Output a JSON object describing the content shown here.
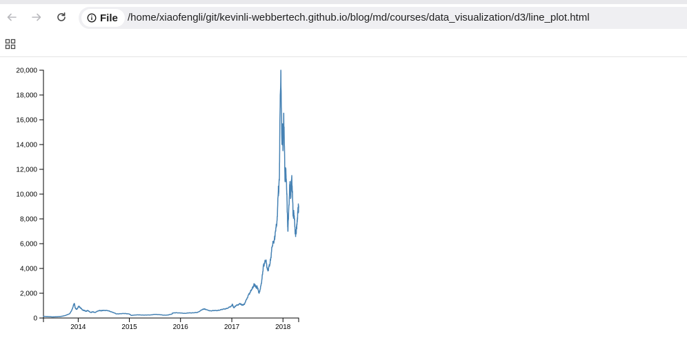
{
  "browser": {
    "back_icon": "arrow-left-icon",
    "forward_icon": "arrow-right-icon",
    "reload_icon": "reload-icon",
    "info_icon": "info-icon",
    "scheme_label": "File",
    "url": "/home/xiaofengli/git/kevinli-webbertech.github.io/blog/md/courses/data_visualization/d3/line_plot.html",
    "apps_icon": "apps-grid-icon"
  },
  "colors": {
    "line": "#4682b4",
    "axis": "#000000",
    "toolbar_strip": "#e9e9ec",
    "omnibox": "#efeff2"
  },
  "chart_data": {
    "type": "line",
    "title": "",
    "xlabel": "",
    "ylabel": "",
    "xlim": [
      "2013-04-28",
      "2018-04-23"
    ],
    "ylim": [
      0,
      20000
    ],
    "grid": false,
    "x_tick_labels": [
      "2014",
      "2015",
      "2016",
      "2017",
      "2018"
    ],
    "y_tick_labels": [
      "0",
      "2,000",
      "4,000",
      "6,000",
      "8,000",
      "10,000",
      "12,000",
      "14,000",
      "16,000",
      "18,000",
      "20,000"
    ],
    "y_ticks": [
      0,
      2000,
      4000,
      6000,
      8000,
      10000,
      12000,
      14000,
      16000,
      18000,
      20000
    ],
    "series": [
      {
        "x": [
          "2013-04-28",
          "2013-06-01",
          "2013-07-01",
          "2013-08-01",
          "2013-09-01",
          "2013-10-01",
          "2013-11-01",
          "2013-11-15",
          "2013-11-25",
          "2013-11-30",
          "2013-12-05",
          "2013-12-10",
          "2013-12-18",
          "2013-12-25",
          "2014-01-05",
          "2014-01-15",
          "2014-02-01",
          "2014-02-15",
          "2014-02-25",
          "2014-03-10",
          "2014-04-01",
          "2014-04-15",
          "2014-05-01",
          "2014-06-01",
          "2014-06-15",
          "2014-07-01",
          "2014-08-01",
          "2014-09-01",
          "2014-10-01",
          "2014-11-01",
          "2014-12-01",
          "2015-01-01",
          "2015-01-15",
          "2015-02-01",
          "2015-03-01",
          "2015-04-01",
          "2015-05-01",
          "2015-06-01",
          "2015-07-01",
          "2015-08-01",
          "2015-09-01",
          "2015-10-01",
          "2015-11-01",
          "2015-11-05",
          "2015-12-01",
          "2016-01-01",
          "2016-02-01",
          "2016-03-01",
          "2016-04-01",
          "2016-05-01",
          "2016-06-01",
          "2016-06-18",
          "2016-07-01",
          "2016-08-01",
          "2016-09-01",
          "2016-10-01",
          "2016-11-01",
          "2016-12-01",
          "2017-01-01",
          "2017-01-05",
          "2017-01-15",
          "2017-02-01",
          "2017-03-01",
          "2017-03-15",
          "2017-04-01",
          "2017-05-01",
          "2017-05-25",
          "2017-06-10",
          "2017-06-20",
          "2017-07-01",
          "2017-07-15",
          "2017-08-01",
          "2017-08-15",
          "2017-09-01",
          "2017-09-15",
          "2017-10-01",
          "2017-10-15",
          "2017-11-01",
          "2017-11-10",
          "2017-11-20",
          "2017-11-29",
          "2017-12-01",
          "2017-12-07",
          "2017-12-10",
          "2017-12-17",
          "2017-12-20",
          "2017-12-25",
          "2017-12-28",
          "2018-01-01",
          "2018-01-06",
          "2018-01-10",
          "2018-01-16",
          "2018-01-20",
          "2018-01-26",
          "2018-02-01",
          "2018-02-05",
          "2018-02-10",
          "2018-02-20",
          "2018-02-25",
          "2018-03-01",
          "2018-03-05",
          "2018-03-15",
          "2018-03-20",
          "2018-03-30",
          "2018-04-05",
          "2018-04-12",
          "2018-04-20",
          "2018-04-23"
        ],
        "y": [
          135,
          120,
          90,
          105,
          130,
          200,
          350,
          600,
          900,
          1100,
          1150,
          850,
          700,
          750,
          950,
          850,
          650,
          600,
          550,
          600,
          450,
          500,
          450,
          620,
          580,
          630,
          590,
          480,
          330,
          350,
          370,
          320,
          210,
          230,
          260,
          240,
          240,
          250,
          290,
          280,
          230,
          240,
          320,
          400,
          430,
          400,
          380,
          410,
          420,
          450,
          650,
          750,
          670,
          580,
          600,
          620,
          720,
          770,
          1000,
          1100,
          830,
          1000,
          1150,
          1050,
          1100,
          1900,
          2300,
          2750,
          2500,
          2500,
          2000,
          2800,
          4300,
          4600,
          3800,
          4400,
          5700,
          6400,
          7000,
          7900,
          10300,
          10000,
          11600,
          16000,
          20000,
          17000,
          14000,
          15500,
          13500,
          16500,
          14500,
          11000,
          12000,
          11000,
          8500,
          7000,
          8500,
          11000,
          9800,
          10500,
          11500,
          8200,
          8500,
          6900,
          6800,
          7900,
          8800,
          9000
        ]
      }
    ]
  }
}
